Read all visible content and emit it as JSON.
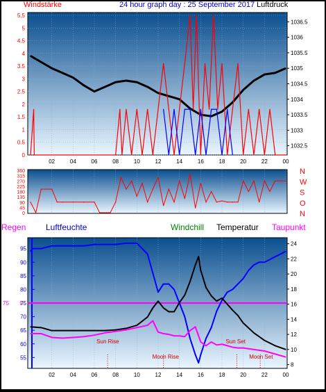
{
  "header": {
    "left_label": "Windstärke",
    "title": "24 hour graph day : 25 September 2017",
    "right_label": "Luftdruck"
  },
  "colors": {
    "bg_top": "#0b4f8f",
    "bg_bottom": "#eaf6ff",
    "wind": "#ff0000",
    "gust": "#0000ff",
    "pressure": "#000000",
    "humidity": "#0000ff",
    "temperature": "#000000",
    "windchill": "#008000",
    "dewpoint": "#ff00ff",
    "header_blue": "#0000cc",
    "axis_tick_label": "#000000"
  },
  "chart_data": [
    {
      "type": "line",
      "name": "wind-pressure",
      "x_ticks": [
        "02",
        "04",
        "06",
        "08",
        "10",
        "12",
        "14",
        "16",
        "18",
        "20",
        "22",
        "00"
      ],
      "y_left_ticks": [
        "0",
        "0.5",
        "1",
        "1.5",
        "2",
        "2.5",
        "3",
        "3.5",
        "4",
        "4.5",
        "5",
        "5.5"
      ],
      "ylim_left": [
        0,
        5.5
      ],
      "y_right_ticks": [
        "1032.5",
        "1033",
        "1033.5",
        "1034",
        "1034.5",
        "1035",
        "1035.5",
        "1036",
        "1036.5"
      ],
      "ylim_right": [
        1032.2,
        1036.8
      ],
      "series": [
        {
          "name": "Luftdruck",
          "axis": "right",
          "color": "#000000",
          "x": [
            0,
            1,
            2,
            3,
            4,
            5,
            6,
            7,
            8,
            9,
            10,
            11,
            12,
            13,
            14,
            15,
            16,
            17,
            18,
            19,
            20,
            21,
            22,
            23,
            24
          ],
          "y": [
            1035.4,
            1035.2,
            1035.0,
            1034.85,
            1034.7,
            1034.45,
            1034.25,
            1034.4,
            1034.55,
            1034.6,
            1034.55,
            1034.4,
            1034.2,
            1034.1,
            1034.0,
            1033.7,
            1033.5,
            1033.45,
            1033.6,
            1033.9,
            1034.3,
            1034.6,
            1034.8,
            1034.85,
            1035.0
          ]
        },
        {
          "name": "Windstärke",
          "axis": "left",
          "color": "#ff0000",
          "x": [
            0,
            0.3,
            0.35,
            8,
            8.4,
            8.6,
            9,
            9.5,
            10,
            10.5,
            11,
            11.5,
            12,
            12.5,
            13,
            13.5,
            14,
            14.5,
            15,
            15.3,
            15.6,
            16,
            16.4,
            16.8,
            17.2,
            17.6,
            18,
            18.5,
            19,
            19.5,
            20,
            20.5,
            21,
            21.5,
            22,
            22.5,
            23,
            24
          ],
          "y": [
            0,
            1.8,
            0,
            0,
            1.8,
            0,
            1.8,
            0,
            1.8,
            0,
            1.8,
            0,
            1.8,
            3.6,
            1.8,
            0,
            1.8,
            3.6,
            5.5,
            1.8,
            5.5,
            0,
            3.6,
            1.8,
            5.5,
            1.8,
            3.6,
            0,
            1.8,
            3.6,
            0,
            1.8,
            0,
            1.8,
            0,
            1.8,
            0,
            0
          ]
        },
        {
          "name": "Gust",
          "axis": "left",
          "color": "#0000ff",
          "x": [
            12.5,
            13,
            13.5,
            14,
            14.5,
            15,
            15.5,
            16,
            16.5,
            17,
            17.5,
            18,
            18.5,
            19
          ],
          "y": [
            1.8,
            0,
            1.8,
            0,
            1.8,
            1.8,
            0,
            1.8,
            0,
            1.8,
            1.8,
            0,
            1.8,
            0
          ]
        }
      ]
    },
    {
      "type": "line",
      "name": "wind-direction",
      "x_ticks": [
        "02",
        "04",
        "06",
        "08",
        "10",
        "12",
        "14",
        "16",
        "18",
        "20",
        "22",
        "00"
      ],
      "y_left_ticks": [
        "0",
        "45",
        "90",
        "135",
        "180",
        "225",
        "270",
        "315",
        "360"
      ],
      "ylim": [
        0,
        360
      ],
      "y_right_labels": [
        "N",
        "W",
        "S",
        "O",
        "N"
      ],
      "series": [
        {
          "name": "Windrichtung",
          "color": "#ff0000",
          "x": [
            0,
            0.5,
            1,
            2,
            2.5,
            3,
            4,
            5,
            6,
            6.5,
            7.5,
            8,
            8.5,
            9,
            9.5,
            10,
            10.5,
            11,
            11.5,
            12,
            12.5,
            13,
            13.5,
            14,
            14.5,
            15,
            15.5,
            16,
            16.5,
            17,
            17.5,
            18,
            18.5,
            19,
            19.5,
            20,
            20.5,
            21,
            21.5,
            22,
            22.5,
            23,
            24
          ],
          "y": [
            90,
            0,
            200,
            200,
            90,
            90,
            90,
            90,
            90,
            0,
            0,
            90,
            300,
            200,
            270,
            140,
            250,
            90,
            200,
            300,
            60,
            200,
            90,
            270,
            120,
            330,
            40,
            250,
            90,
            180,
            90,
            100,
            90,
            90,
            90,
            270,
            180,
            270,
            90,
            270,
            180,
            270,
            270
          ]
        }
      ]
    },
    {
      "type": "line",
      "name": "temperature-humidity",
      "x_ticks": [
        "02",
        "04",
        "06",
        "08",
        "10",
        "12",
        "14",
        "16",
        "18",
        "20",
        "22",
        "00"
      ],
      "y_left_ticks": [
        "55",
        "60",
        "65",
        "70",
        "75",
        "80",
        "85",
        "90",
        "95"
      ],
      "ylim_left": [
        51,
        99
      ],
      "y_right_ticks": [
        "8",
        "10",
        "12",
        "14",
        "16",
        "18",
        "20",
        "22",
        "24"
      ],
      "ylim_right": [
        7.5,
        24.8
      ],
      "series_labels": {
        "regen": "Regen",
        "luftfeuchte": "Luftfeuchte",
        "windchill": "Windchill",
        "temperatur": "Temperatur",
        "taupunkt": "Taupunkt"
      },
      "zero_line_label": "0",
      "events": [
        {
          "label": "Sun Rise",
          "x": 7.25
        },
        {
          "label": "Moon Rise",
          "x": 12.5
        },
        {
          "label": "Sun Set",
          "x": 19.4
        },
        {
          "label": "Moon Set",
          "x": 21.6
        }
      ],
      "series": [
        {
          "name": "Luftfeuchte",
          "axis": "left",
          "color": "#0000ff",
          "x": [
            0,
            0.2,
            1,
            2,
            3,
            4,
            5,
            6,
            7,
            8,
            9,
            10,
            11,
            11.5,
            12,
            12.5,
            13,
            13.5,
            14,
            14.5,
            15,
            15.5,
            15.8,
            16,
            16.5,
            17,
            17.5,
            18,
            18.5,
            19,
            19.5,
            20,
            20.5,
            21,
            21.5,
            22,
            22.5,
            23,
            23.5,
            24
          ],
          "y": [
            94,
            95,
            95,
            96,
            96,
            96,
            96,
            96.5,
            96.5,
            96.5,
            97,
            97,
            93,
            86,
            79,
            82,
            82,
            80,
            75,
            70,
            62,
            56,
            53,
            56,
            62,
            66,
            72,
            76,
            79,
            80,
            82,
            84,
            87,
            89,
            90,
            90,
            91,
            92,
            93,
            94
          ]
        },
        {
          "name": "Temperatur",
          "axis": "right",
          "color": "#000000",
          "x": [
            0,
            1,
            2,
            3,
            4,
            5,
            6,
            7,
            8,
            9,
            10,
            11,
            11.5,
            12,
            12.5,
            13,
            13.5,
            14,
            14.5,
            15,
            15.5,
            15.8,
            16,
            16.5,
            17,
            17.5,
            18,
            18.5,
            19,
            19.5,
            20,
            21,
            22,
            23,
            24
          ],
          "y": [
            13,
            12.9,
            12.5,
            12.5,
            12.5,
            12.5,
            12.5,
            12.5,
            12.6,
            12.8,
            13.2,
            14.3,
            15.5,
            16.4,
            15.5,
            15.0,
            15.0,
            16.2,
            17.2,
            19.0,
            21.2,
            22.3,
            20.5,
            18.2,
            17.1,
            16.4,
            16.8,
            16.0,
            15.2,
            14.5,
            13.5,
            12.2,
            11.2,
            10.5,
            10.0
          ]
        },
        {
          "name": "Taupunkt",
          "axis": "right",
          "color": "#ff00ff",
          "x": [
            0,
            1,
            2,
            3,
            4,
            5,
            6,
            7,
            8,
            9,
            10,
            11,
            11.5,
            12,
            12.5,
            13,
            13.5,
            14,
            14.5,
            15,
            15.5,
            16,
            16.5,
            17,
            17.5,
            18,
            18.5,
            19,
            19.5,
            20,
            21,
            22,
            23,
            24
          ],
          "y": [
            12.1,
            12.1,
            11.6,
            11.5,
            11.6,
            11.7,
            11.9,
            12.2,
            12.4,
            12.6,
            12.9,
            13.2,
            13.8,
            12.3,
            12.1,
            12.0,
            11.8,
            11.8,
            11.7,
            12.5,
            13.0,
            11.0,
            10.5,
            11.0,
            10.6,
            10.7,
            10.5,
            10.3,
            10.2,
            10.2,
            10.0,
            9.8,
            9.4,
            9.0
          ]
        }
      ]
    }
  ]
}
